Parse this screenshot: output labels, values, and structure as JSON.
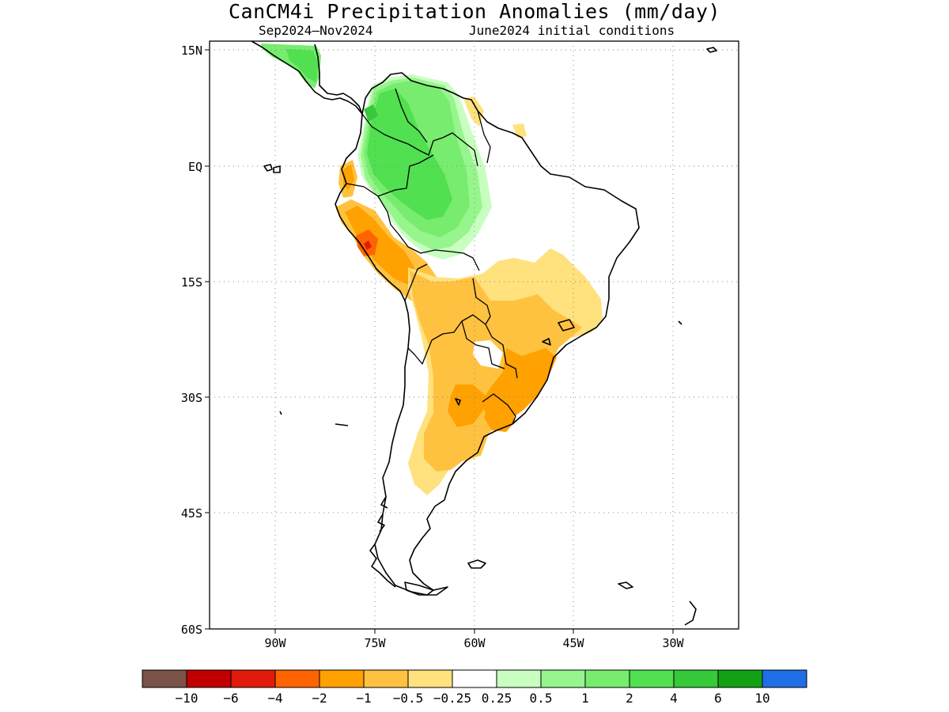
{
  "title": "CanCM4i Precipitation Anomalies (mm/day)",
  "subtitle_left": "Sep2024–Nov2024",
  "subtitle_right": "June2024 initial conditions",
  "lat_ticks": [
    "15N",
    "EQ",
    "15S",
    "30S",
    "45S",
    "60S"
  ],
  "lon_ticks": [
    "90W",
    "75W",
    "60W",
    "45W",
    "30W"
  ],
  "colorbar": {
    "colors": [
      "#7b5247",
      "#c00000",
      "#e01b0b",
      "#ff6400",
      "#ffa100",
      "#ffc240",
      "#ffe17d",
      "#ffffff",
      "#c8ffc0",
      "#96f58c",
      "#78ec6e",
      "#50e050",
      "#36c939",
      "#12a114",
      "#1e6fe6"
    ],
    "labels": [
      "−10",
      "−6",
      "−4",
      "−2",
      "−1",
      "−0.5",
      "−0.25",
      "0.25",
      "0.5",
      "1",
      "2",
      "4",
      "6",
      "10"
    ]
  }
}
